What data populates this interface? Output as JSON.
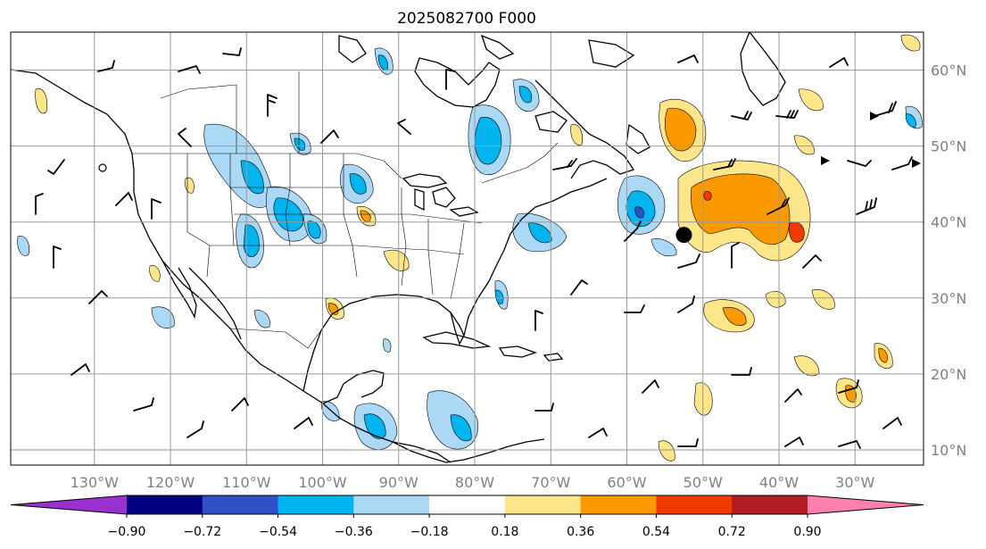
{
  "title": "2025082700 F000",
  "map": {
    "lon_labels": [
      "130°W",
      "120°W",
      "110°W",
      "100°W",
      "90°W",
      "80°W",
      "70°W",
      "60°W",
      "50°W",
      "40°W",
      "30°W"
    ],
    "lon_values": [
      -130,
      -120,
      -110,
      -100,
      -90,
      -80,
      -70,
      -60,
      -50,
      -40,
      -30
    ],
    "lat_labels": [
      "60°N",
      "50°N",
      "40°N",
      "30°N",
      "20°N",
      "10°N"
    ],
    "lat_values": [
      60,
      50,
      40,
      30,
      20,
      10
    ],
    "extent": {
      "lon_min": -141,
      "lon_max": -21,
      "lat_min": 8,
      "lat_max": 65
    },
    "marker": {
      "lon": -52.5,
      "lat": 38.3,
      "color": "#000000"
    },
    "label_color": "#808080"
  },
  "colorbar": {
    "ticks": [
      "−0.90",
      "−0.72",
      "−0.54",
      "−0.36",
      "−0.18",
      "0.18",
      "0.36",
      "0.54",
      "0.72",
      "0.90"
    ],
    "colors": [
      "#9b30d0",
      "#000080",
      "#3050c8",
      "#00b4f0",
      "#aad8f5",
      "#ffffff",
      "#fde68a",
      "#fb9a00",
      "#f03a00",
      "#b01c22",
      "#ff80b0"
    ]
  }
}
